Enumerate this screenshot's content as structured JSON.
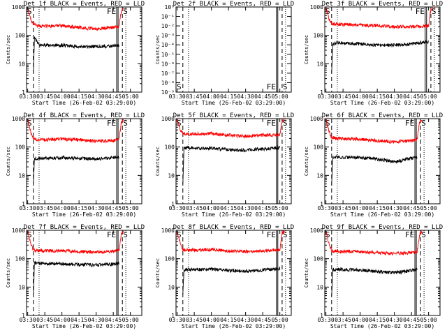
{
  "colors": {
    "events": "#000000",
    "lld": "#ff0000",
    "axes": "#000000",
    "background": "#ffffff"
  },
  "chart_data": [
    {
      "type": "line",
      "title": "Det 1f BLACK = Events, RED = LLD",
      "xlabel": "Start Time (26-Feb-02 03:29:00)",
      "ylabel": "Counts/sec",
      "xticks": [
        "03:30",
        "03:45",
        "04:00",
        "04:15",
        "04:30",
        "04:45",
        "05:00"
      ],
      "yticks": [
        "1",
        "10",
        "100",
        "1000"
      ],
      "yscale": "log",
      "ylim": [
        1,
        1000
      ],
      "markers": [
        "S",
        "FE",
        "S"
      ],
      "series": [
        {
          "color": "red",
          "x": [
            "03:30",
            "03:33",
            "03:35",
            "03:40",
            "04:00",
            "04:15",
            "04:30",
            "04:45",
            "04:50",
            "04:52",
            "04:54"
          ],
          "values": [
            900,
            350,
            250,
            210,
            220,
            190,
            170,
            190,
            200,
            700,
            900
          ]
        },
        {
          "color": "black",
          "x": [
            "03:35",
            "03:36",
            "03:40",
            "04:00",
            "04:15",
            "04:30",
            "04:45",
            "04:50"
          ],
          "values": [
            5,
            80,
            45,
            45,
            40,
            40,
            42,
            45
          ]
        }
      ]
    },
    {
      "type": "line",
      "title": "Det 2f BLACK = Events, RED = LLD",
      "xlabel": "Start Time (26-Feb-02 03:29:00)",
      "ylabel": "Counts/sec",
      "xticks": [
        "03:30",
        "03:45",
        "04:00",
        "04:15",
        "04:30",
        "04:45",
        "05:00"
      ],
      "yticks": [
        "10⁻⁹",
        "10⁻⁸",
        "10⁻⁷",
        "10⁻⁶",
        "10⁻⁵",
        "10⁻⁴",
        "10⁻³",
        "10⁻²",
        "10⁻¹",
        "10⁰"
      ],
      "yscale": "log",
      "ylim": [
        1,
        1e-09
      ],
      "markers": [
        "S",
        "FE",
        "S"
      ],
      "series": []
    },
    {
      "type": "line",
      "title": "Det 3f BLACK = Events, RED = LLD",
      "xlabel": "Start Time (26-Feb-02 03:29:00)",
      "ylabel": "Counts/sec",
      "xticks": [
        "03:30",
        "03:45",
        "04:00",
        "04:15",
        "04:30",
        "04:45",
        "05:00"
      ],
      "yticks": [
        "1",
        "10",
        "100",
        "1000"
      ],
      "yscale": "log",
      "ylim": [
        1,
        1000
      ],
      "markers": [
        "S",
        "FE",
        "S"
      ],
      "series": [
        {
          "color": "red",
          "x": [
            "03:30",
            "03:33",
            "03:35",
            "03:40",
            "04:00",
            "04:15",
            "04:30",
            "04:45",
            "04:55",
            "05:00",
            "05:02",
            "05:04"
          ],
          "values": [
            900,
            350,
            260,
            250,
            230,
            220,
            200,
            200,
            210,
            220,
            800,
            950
          ]
        },
        {
          "color": "black",
          "x": [
            "03:35",
            "03:36",
            "03:40",
            "04:00",
            "04:15",
            "04:30",
            "04:45",
            "05:00"
          ],
          "values": [
            5,
            50,
            55,
            50,
            45,
            45,
            50,
            60
          ]
        }
      ]
    },
    {
      "type": "line",
      "title": "Det 4f BLACK = Events, RED = LLD",
      "xlabel": "Start Time (26-Feb-02 03:29:00)",
      "ylabel": "Counts/sec",
      "xticks": [
        "03:30",
        "03:45",
        "04:00",
        "04:15",
        "04:30",
        "04:45",
        "05:00"
      ],
      "yticks": [
        "1",
        "10",
        "100",
        "1000"
      ],
      "yscale": "log",
      "ylim": [
        1,
        1000
      ],
      "markers": [
        "S",
        "FE",
        "S"
      ],
      "series": [
        {
          "color": "red",
          "x": [
            "03:30",
            "03:33",
            "03:35",
            "03:40",
            "04:00",
            "04:15",
            "04:30",
            "04:45",
            "04:50",
            "04:52",
            "04:54"
          ],
          "values": [
            900,
            300,
            190,
            180,
            190,
            180,
            160,
            170,
            180,
            700,
            900
          ]
        },
        {
          "color": "black",
          "x": [
            "03:35",
            "03:36",
            "03:40",
            "04:00",
            "04:15",
            "04:30",
            "04:45",
            "04:50"
          ],
          "values": [
            5,
            40,
            40,
            42,
            40,
            38,
            42,
            45
          ]
        }
      ]
    },
    {
      "type": "line",
      "title": "Det 5f BLACK = Events, RED = LLD",
      "xlabel": "Start Time (26-Feb-02 03:29:00)",
      "ylabel": "Counts/sec",
      "xticks": [
        "03:30",
        "03:45",
        "04:00",
        "04:15",
        "04:30",
        "04:45",
        "05:00"
      ],
      "yticks": [
        "1",
        "10",
        "100",
        "1000"
      ],
      "yscale": "log",
      "ylim": [
        1,
        1000
      ],
      "markers": [
        "S",
        "FE",
        "S"
      ],
      "series": [
        {
          "color": "red",
          "x": [
            "03:30",
            "03:33",
            "03:35",
            "03:40",
            "04:00",
            "04:15",
            "04:30",
            "04:45",
            "04:55",
            "05:00",
            "05:02",
            "05:04"
          ],
          "values": [
            900,
            400,
            300,
            290,
            300,
            260,
            240,
            260,
            270,
            280,
            800,
            950
          ]
        },
        {
          "color": "black",
          "x": [
            "03:35",
            "03:36",
            "03:40",
            "04:00",
            "04:15",
            "04:30",
            "04:45",
            "05:00"
          ],
          "values": [
            5,
            90,
            95,
            90,
            80,
            78,
            85,
            95
          ]
        }
      ]
    },
    {
      "type": "line",
      "title": "Det 6f BLACK = Events, RED = LLD",
      "xlabel": "Start Time (26-Feb-02 03:29:00)",
      "ylabel": "Counts/sec",
      "xticks": [
        "03:30",
        "03:45",
        "04:00",
        "04:15",
        "04:30",
        "04:45",
        "05:00"
      ],
      "yticks": [
        "1",
        "10",
        "100",
        "1000"
      ],
      "yscale": "log",
      "ylim": [
        1,
        1000
      ],
      "markers": [
        "S",
        "FE",
        "S"
      ],
      "series": [
        {
          "color": "red",
          "x": [
            "03:30",
            "03:33",
            "03:35",
            "03:40",
            "04:00",
            "04:15",
            "04:30",
            "04:45",
            "04:50",
            "04:52",
            "04:54"
          ],
          "values": [
            900,
            330,
            220,
            200,
            190,
            170,
            150,
            170,
            180,
            700,
            900
          ]
        },
        {
          "color": "black",
          "x": [
            "03:35",
            "03:36",
            "03:40",
            "04:00",
            "04:15",
            "04:30",
            "04:45",
            "04:50"
          ],
          "values": [
            5,
            45,
            45,
            42,
            38,
            30,
            40,
            45
          ]
        }
      ]
    },
    {
      "type": "line",
      "title": "Det 7f BLACK = Events, RED = LLD",
      "xlabel": "Start Time (26-Feb-02 03:29:00)",
      "ylabel": "Counts/sec",
      "xticks": [
        "03:30",
        "03:45",
        "04:00",
        "04:15",
        "04:30",
        "04:45",
        "05:00"
      ],
      "yticks": [
        "1",
        "10",
        "100",
        "1000"
      ],
      "yscale": "log",
      "ylim": [
        1,
        1000
      ],
      "markers": [
        "S",
        "FE",
        "S"
      ],
      "series": [
        {
          "color": "red",
          "x": [
            "03:30",
            "03:33",
            "03:35",
            "03:40",
            "04:00",
            "04:15",
            "04:30",
            "04:45",
            "04:50",
            "04:52",
            "04:54"
          ],
          "values": [
            900,
            300,
            200,
            190,
            190,
            180,
            170,
            180,
            190,
            700,
            900
          ]
        },
        {
          "color": "black",
          "x": [
            "03:35",
            "03:36",
            "03:40",
            "04:00",
            "04:15",
            "04:30",
            "04:45",
            "04:50"
          ],
          "values": [
            5,
            70,
            70,
            65,
            62,
            60,
            65,
            70
          ]
        }
      ]
    },
    {
      "type": "line",
      "title": "Det 8f BLACK = Events, RED = LLD",
      "xlabel": "Start Time (26-Feb-02 03:29:00)",
      "ylabel": "Counts/sec",
      "xticks": [
        "03:30",
        "03:45",
        "04:00",
        "04:15",
        "04:30",
        "04:45",
        "05:00"
      ],
      "yticks": [
        "1",
        "10",
        "100",
        "1000"
      ],
      "yscale": "log",
      "ylim": [
        1,
        1000
      ],
      "markers": [
        "S",
        "FE",
        "S"
      ],
      "series": [
        {
          "color": "red",
          "x": [
            "03:30",
            "03:33",
            "03:35",
            "03:40",
            "04:00",
            "04:15",
            "04:30",
            "04:45",
            "04:55",
            "05:00",
            "05:02",
            "05:04"
          ],
          "values": [
            900,
            320,
            210,
            200,
            210,
            190,
            180,
            190,
            200,
            210,
            800,
            950
          ]
        },
        {
          "color": "black",
          "x": [
            "03:35",
            "03:36",
            "03:40",
            "04:00",
            "04:15",
            "04:30",
            "04:45",
            "05:00"
          ],
          "values": [
            5,
            40,
            42,
            42,
            38,
            36,
            40,
            45
          ]
        }
      ]
    },
    {
      "type": "line",
      "title": "Det 9f BLACK = Events, RED = LLD",
      "xlabel": "Start Time (26-Feb-02 03:29:00)",
      "ylabel": "Counts/sec",
      "xticks": [
        "03:30",
        "03:45",
        "04:00",
        "04:15",
        "04:30",
        "04:45",
        "05:00"
      ],
      "yticks": [
        "1",
        "10",
        "100",
        "1000"
      ],
      "yscale": "log",
      "ylim": [
        1,
        1000
      ],
      "markers": [
        "S",
        "FE",
        "S"
      ],
      "series": [
        {
          "color": "red",
          "x": [
            "03:30",
            "03:33",
            "03:35",
            "03:40",
            "04:00",
            "04:15",
            "04:30",
            "04:45",
            "04:50",
            "04:52",
            "04:54"
          ],
          "values": [
            900,
            300,
            190,
            180,
            180,
            160,
            150,
            165,
            175,
            700,
            900
          ]
        },
        {
          "color": "black",
          "x": [
            "03:35",
            "03:36",
            "03:40",
            "04:00",
            "04:15",
            "04:30",
            "04:45",
            "04:50"
          ],
          "values": [
            5,
            40,
            42,
            40,
            35,
            32,
            38,
            45
          ]
        }
      ]
    }
  ]
}
